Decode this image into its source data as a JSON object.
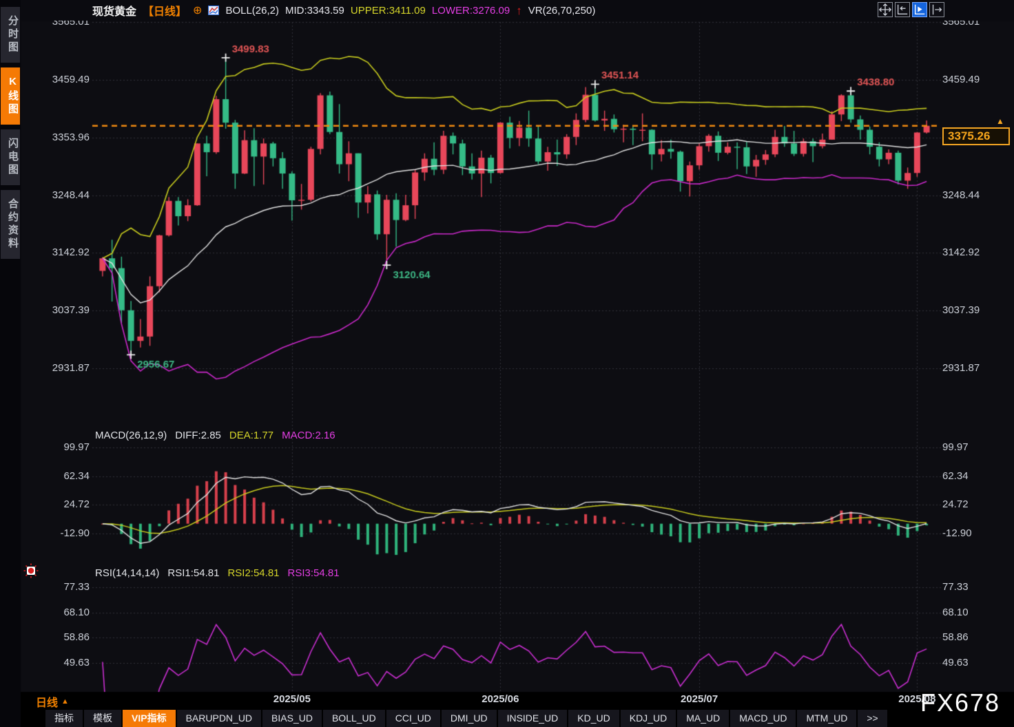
{
  "header": {
    "title": "现货黄金",
    "period": "【日线】",
    "boll_label": "BOLL(26,2)",
    "mid_label": "MID:3343.59",
    "upper_label": "UPPER:3411.09",
    "lower_label": "LOWER:3276.09",
    "vr_label": "VR(26,70,250)",
    "icons": {
      "add": "⊕",
      "up_arrow": "↑",
      "period_triangle": "▲",
      "price_marker": "▲"
    }
  },
  "sidebar": {
    "items": [
      {
        "label": "分时图",
        "name": "sidebar-item-time-chart",
        "active": false
      },
      {
        "label": "K线图",
        "name": "sidebar-item-kline-chart",
        "active": true
      },
      {
        "label": "闪电图",
        "name": "sidebar-item-flash-chart",
        "active": false
      },
      {
        "label": "合约资料",
        "name": "sidebar-item-contract-info",
        "active": false
      }
    ]
  },
  "main_panel": {
    "y_axis": [
      "3565.01",
      "3459.49",
      "3353.96",
      "3248.44",
      "3142.92",
      "3037.39",
      "2931.87"
    ],
    "price_box": "3375.26"
  },
  "macd_panel": {
    "header": {
      "name": "MACD(26,12,9)",
      "diff": "DIFF:2.85",
      "dea": "DEA:1.77",
      "macd": "MACD:2.16"
    },
    "y_axis": [
      "99.97",
      "62.34",
      "24.72",
      "-12.90"
    ]
  },
  "rsi_panel": {
    "header": {
      "name": "RSI(14,14,14)",
      "rsi1": "RSI1:54.81",
      "rsi2": "RSI2:54.81",
      "rsi3": "RSI3:54.81"
    },
    "y_axis": [
      "77.33",
      "68.10",
      "58.86",
      "49.63"
    ]
  },
  "bottom": {
    "period_label": "日线",
    "tabs": [
      {
        "label": "指标",
        "name": "tab-indicators",
        "active": false
      },
      {
        "label": "模板",
        "name": "tab-templates",
        "active": false
      },
      {
        "label": "VIP指标",
        "name": "tab-vip-indicators",
        "active": true
      },
      {
        "label": "BARUPDN_UD",
        "name": "tab-barupdn-ud",
        "active": false
      },
      {
        "label": "BIAS_UD",
        "name": "tab-bias-ud",
        "active": false
      },
      {
        "label": "BOLL_UD",
        "name": "tab-boll-ud",
        "active": false
      },
      {
        "label": "CCI_UD",
        "name": "tab-cci-ud",
        "active": false
      },
      {
        "label": "DMI_UD",
        "name": "tab-dmi-ud",
        "active": false
      },
      {
        "label": "INSIDE_UD",
        "name": "tab-inside-ud",
        "active": false
      },
      {
        "label": "KD_UD",
        "name": "tab-kd-ud",
        "active": false
      },
      {
        "label": "KDJ_UD",
        "name": "tab-kdj-ud",
        "active": false
      },
      {
        "label": "MA_UD",
        "name": "tab-ma-ud",
        "active": false
      },
      {
        "label": "MACD_UD",
        "name": "tab-macd-ud",
        "active": false
      },
      {
        "label": "MTM_UD",
        "name": "tab-mtm-ud",
        "active": false
      },
      {
        "label": ">>",
        "name": "tab-more",
        "active": false
      }
    ]
  },
  "watermark": "FX678",
  "colors": {
    "bg": "#0d0d12",
    "grid": "#31313b",
    "up": "#e8475a",
    "down": "#35bb87",
    "boll_upper": "#c9cd1e",
    "boll_mid": "#e2e2e2",
    "boll_lower": "#cc29cc",
    "price_line": "#f08a10",
    "annotation_high": "#e05555",
    "annotation_low": "#3db583",
    "macd_diff": "#e2e2e2",
    "macd_dea": "#c9cd1e",
    "hist_pos": "#d8404c",
    "hist_neg": "#2fb47c",
    "rsi_line": "#cc2fd4",
    "marker": "#f0f0f0"
  },
  "chart_data": {
    "type": "candlestick",
    "title": "现货黄金 日线 (spot gold daily with BOLL(26,2), MACD(26,12,9), RSI(14,14,14))",
    "x_labels": [
      "2025/05",
      "2025/06",
      "2025/07",
      "2025/08"
    ],
    "month_breaks": [
      {
        "index": 20,
        "label": "2025/05"
      },
      {
        "index": 42,
        "label": "2025/06"
      },
      {
        "index": 63,
        "label": "2025/07"
      },
      {
        "index": 86,
        "label": "2025/08"
      }
    ],
    "price_axis": [
      3565.01,
      3459.49,
      3353.96,
      3248.44,
      3142.92,
      3037.39,
      2931.87
    ],
    "macd_axis": [
      99.97,
      62.34,
      24.72,
      -12.9
    ],
    "rsi_axis": [
      77.33,
      68.1,
      58.86,
      49.63
    ],
    "last_price": 3375.26,
    "indicators": {
      "boll": {
        "period": 26,
        "mult": 2,
        "mid": 3343.59,
        "upper": 3411.09,
        "lower": 3276.09
      },
      "macd": {
        "slow": 26,
        "fast": 12,
        "signal": 9,
        "diff": 2.85,
        "dea": 1.77,
        "macd": 2.16
      },
      "rsi": {
        "period": 14,
        "rsi1": 54.81,
        "rsi2": 54.81,
        "rsi3": 54.81
      }
    },
    "annotations": [
      {
        "index": 13,
        "price": 3499.83,
        "text": "3499.83",
        "type": "high",
        "side": "above"
      },
      {
        "index": 3,
        "price": 2956.67,
        "text": "2956.67",
        "type": "low",
        "side": "below"
      },
      {
        "index": 30,
        "price": 3120.64,
        "text": "3120.64",
        "type": "low",
        "side": "below"
      },
      {
        "index": 52,
        "price": 3451.14,
        "text": "3451.14",
        "type": "high",
        "side": "above"
      },
      {
        "index": 79,
        "price": 3438.8,
        "text": "3438.80",
        "type": "high",
        "side": "above"
      }
    ],
    "candles": [
      [
        3110,
        3135,
        3100,
        3133
      ],
      [
        3133,
        3167,
        3054,
        3115
      ],
      [
        3115,
        3136,
        3015,
        3038
      ],
      [
        3038,
        3055,
        2956.67,
        2982
      ],
      [
        2982,
        3022,
        2970,
        2990
      ],
      [
        2990,
        3100,
        2973,
        3082
      ],
      [
        3082,
        3176,
        3071,
        3175
      ],
      [
        3175,
        3245,
        3173,
        3238
      ],
      [
        3238,
        3245,
        3193,
        3210
      ],
      [
        3210,
        3241,
        3201,
        3230
      ],
      [
        3230,
        3343,
        3229,
        3343
      ],
      [
        3343,
        3357,
        3283,
        3327
      ],
      [
        3327,
        3430,
        3324,
        3424
      ],
      [
        3424,
        3499.83,
        3370,
        3381
      ],
      [
        3381,
        3386,
        3260,
        3288
      ],
      [
        3288,
        3367,
        3287,
        3349
      ],
      [
        3349,
        3371,
        3265,
        3319
      ],
      [
        3319,
        3352,
        3268,
        3343
      ],
      [
        3343,
        3346,
        3301,
        3316
      ],
      [
        3316,
        3327,
        3260,
        3288
      ],
      [
        3288,
        3292,
        3202,
        3239
      ],
      [
        3239,
        3269,
        3222,
        3240
      ],
      [
        3240,
        3337,
        3237,
        3333
      ],
      [
        3333,
        3435,
        3323,
        3431
      ],
      [
        3431,
        3438,
        3360,
        3364
      ],
      [
        3364,
        3415,
        3288,
        3305
      ],
      [
        3305,
        3347,
        3274,
        3325
      ],
      [
        3325,
        3325,
        3207,
        3235
      ],
      [
        3235,
        3265,
        3215,
        3250
      ],
      [
        3250,
        3257,
        3167,
        3177
      ],
      [
        3177,
        3249,
        3120.64,
        3240
      ],
      [
        3240,
        3252,
        3154,
        3203
      ],
      [
        3203,
        3249,
        3201,
        3230
      ],
      [
        3230,
        3295,
        3205,
        3290
      ],
      [
        3290,
        3325,
        3275,
        3315
      ],
      [
        3315,
        3345,
        3285,
        3295
      ],
      [
        3295,
        3366,
        3287,
        3357
      ],
      [
        3357,
        3363,
        3323,
        3343
      ],
      [
        3343,
        3350,
        3285,
        3301
      ],
      [
        3301,
        3325,
        3277,
        3288
      ],
      [
        3288,
        3330,
        3245,
        3317
      ],
      [
        3317,
        3322,
        3270,
        3289
      ],
      [
        3289,
        3382,
        3288,
        3381
      ],
      [
        3381,
        3392,
        3334,
        3353
      ],
      [
        3353,
        3384,
        3338,
        3372
      ],
      [
        3372,
        3403,
        3337,
        3352
      ],
      [
        3352,
        3375,
        3305,
        3310
      ],
      [
        3310,
        3337,
        3293,
        3327
      ],
      [
        3327,
        3350,
        3302,
        3323
      ],
      [
        3323,
        3360,
        3315,
        3355
      ],
      [
        3355,
        3398,
        3340,
        3386
      ],
      [
        3386,
        3446,
        3382,
        3432
      ],
      [
        3432,
        3451.14,
        3383,
        3385
      ],
      [
        3385,
        3403,
        3366,
        3388
      ],
      [
        3388,
        3396,
        3363,
        3369
      ],
      [
        3369,
        3377,
        3345,
        3370
      ],
      [
        3370,
        3374,
        3340,
        3368
      ],
      [
        3368,
        3398,
        3347,
        3368
      ],
      [
        3368,
        3369,
        3295,
        3323
      ],
      [
        3323,
        3349,
        3310,
        3333
      ],
      [
        3333,
        3350,
        3315,
        3328
      ],
      [
        3328,
        3330,
        3255,
        3274
      ],
      [
        3274,
        3310,
        3246,
        3303
      ],
      [
        3303,
        3343,
        3295,
        3338
      ],
      [
        3338,
        3360,
        3328,
        3357
      ],
      [
        3357,
        3365,
        3311,
        3326
      ],
      [
        3326,
        3345,
        3323,
        3337
      ],
      [
        3337,
        3345,
        3296,
        3336
      ],
      [
        3336,
        3346,
        3287,
        3301
      ],
      [
        3301,
        3322,
        3282,
        3313
      ],
      [
        3313,
        3331,
        3304,
        3323
      ],
      [
        3323,
        3368,
        3318,
        3355
      ],
      [
        3355,
        3375,
        3337,
        3343
      ],
      [
        3343,
        3366,
        3320,
        3324
      ],
      [
        3324,
        3352,
        3319,
        3347
      ],
      [
        3347,
        3352,
        3309,
        3338
      ],
      [
        3338,
        3361,
        3334,
        3350
      ],
      [
        3350,
        3402,
        3350,
        3396
      ],
      [
        3396,
        3433,
        3384,
        3431
      ],
      [
        3431,
        3438.8,
        3381,
        3387
      ],
      [
        3387,
        3394,
        3350,
        3368
      ],
      [
        3368,
        3374,
        3323,
        3337
      ],
      [
        3337,
        3345,
        3301,
        3314
      ],
      [
        3314,
        3332,
        3305,
        3326
      ],
      [
        3326,
        3330,
        3268,
        3275
      ],
      [
        3275,
        3299,
        3260,
        3289
      ],
      [
        3289,
        3364,
        3282,
        3363
      ],
      [
        3363,
        3385,
        3361,
        3375.26
      ]
    ]
  }
}
